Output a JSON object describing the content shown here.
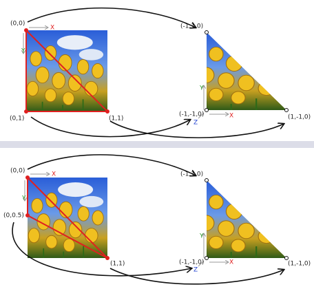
{
  "panels": [
    {
      "source": {
        "corner_labels": [
          "(0,0)",
          "(0,1)",
          "(1,1)"
        ],
        "axis_x": "X",
        "axis_y": "Y"
      },
      "target": {
        "corner_labels": [
          "(-1,1,0)",
          "(-1,-1,0)",
          "(1,-1,0)"
        ],
        "axis_x": "X",
        "axis_y": "Y",
        "axis_z": "Z"
      }
    },
    {
      "source": {
        "corner_labels": [
          "(0,0)",
          "(0,0.5)",
          "(1,1)"
        ],
        "axis_x": "X",
        "axis_y": "Y"
      },
      "target": {
        "corner_labels": [
          "(-1,1,0)",
          "(-1,-1,0)",
          "(1,-1,0)"
        ],
        "axis_x": "X",
        "axis_y": "Y",
        "axis_z": "Z"
      }
    }
  ]
}
